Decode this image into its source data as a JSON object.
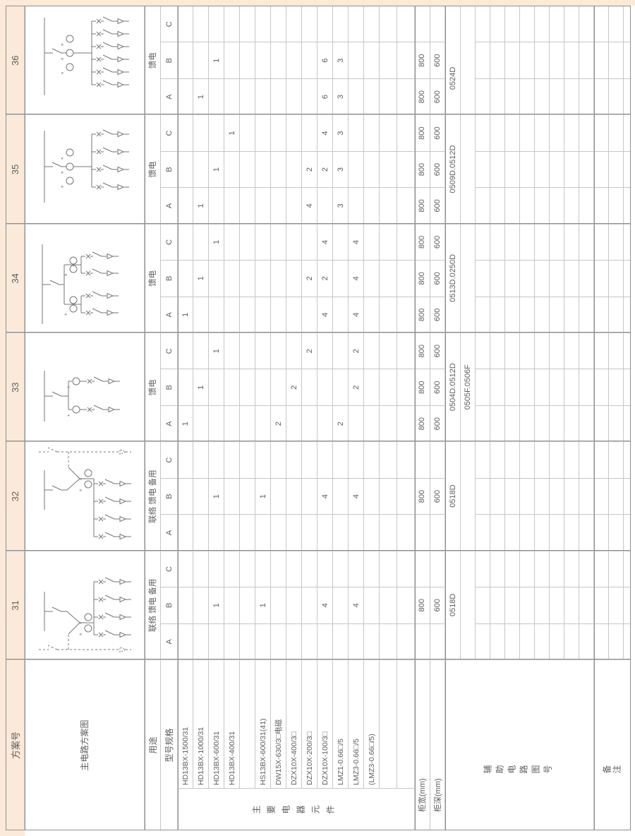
{
  "colors": {
    "paper": "#fbead9",
    "grid_light": "#c6c6c6",
    "grid_dark": "#8f8f8f",
    "text": "#5d5d5d",
    "diagram_stroke": "#757575",
    "background": "#ffffff"
  },
  "header": {
    "scheme_no_label": "方案号"
  },
  "row_labels": {
    "diagram": "主电路方案图",
    "purpose": "用途",
    "spec": "型号规格",
    "components": "主要电器元件",
    "width": "柜宽(mm)",
    "depth": "柜深(mm)",
    "aux": "辅助电路图号",
    "remark": "备注"
  },
  "subcols": [
    "A",
    "B",
    "C"
  ],
  "components": [
    "HD13BX-1500/31",
    "HD13BX-1000/31",
    "HD13BX-600/31",
    "HD13BX-400/31",
    "",
    "HS13BX-600/31(41)",
    "DW15X-630/3□电磁",
    "DZX10X-400/3□",
    "DZX10X-200/3□",
    "DZX10X-100/3□",
    "LMZ1-0.66□/5",
    "LMZ3-0.66□/5",
    "(LMZ3-0.66□/5)"
  ],
  "schemes": [
    {
      "no": "31",
      "purpose": "联络 馈电 备用",
      "A": [
        "",
        "",
        "",
        "",
        "",
        "",
        "",
        "",
        "",
        "",
        "",
        "",
        ""
      ],
      "B": [
        "",
        "",
        "1",
        "",
        "",
        "1",
        "",
        "",
        "",
        "4",
        "",
        "4",
        ""
      ],
      "C": [
        "",
        "",
        "",
        "",
        "",
        "",
        "",
        "",
        "",
        "",
        "",
        "",
        ""
      ],
      "width": [
        "",
        "800",
        ""
      ],
      "depth": [
        "",
        "600",
        ""
      ],
      "aux": [
        "0518D"
      ],
      "aux_span": "band",
      "diagram": {
        "kind": "tie",
        "feeders": 4,
        "cts": 2,
        "reserve": "left"
      }
    },
    {
      "no": "32",
      "purpose": "联络 馈电 备用",
      "A": [
        "",
        "",
        "",
        "",
        "",
        "",
        "",
        "",
        "",
        "",
        "",
        "",
        ""
      ],
      "B": [
        "",
        "",
        "1",
        "",
        "",
        "1",
        "",
        "",
        "",
        "4",
        "",
        "4",
        ""
      ],
      "C": [
        "",
        "",
        "",
        "",
        "",
        "",
        "",
        "",
        "",
        "",
        "",
        "",
        ""
      ],
      "width": [
        "",
        "800",
        ""
      ],
      "depth": [
        "",
        "600",
        ""
      ],
      "aux": [
        "0518D"
      ],
      "aux_span": "band",
      "diagram": {
        "kind": "tie",
        "feeders": 4,
        "cts": 2,
        "reserve": "right"
      }
    },
    {
      "no": "33",
      "purpose": "馈电",
      "A": [
        "1",
        "",
        "",
        "",
        "",
        "",
        "2",
        "",
        "",
        "",
        "2",
        "",
        ""
      ],
      "B": [
        "",
        "1",
        "",
        "",
        "",
        "",
        "",
        "2",
        "",
        "",
        "",
        "2",
        ""
      ],
      "C": [
        "",
        "",
        "1",
        "",
        "",
        "",
        "",
        "",
        "2",
        "",
        "",
        "2",
        ""
      ],
      "width": [
        "800",
        "800",
        "800"
      ],
      "depth": [
        "600",
        "600",
        "600"
      ],
      "aux": [
        "0504D.0512D",
        "0505F.0506F"
      ],
      "aux_span": "band",
      "diagram": {
        "kind": "feeder-ct",
        "feeders": 2
      }
    },
    {
      "no": "34",
      "purpose": "馈电",
      "A": [
        "1",
        "",
        "",
        "",
        "",
        "",
        "",
        "",
        "",
        "4",
        "",
        "4",
        ""
      ],
      "B": [
        "",
        "1",
        "",
        "",
        "",
        "",
        "",
        "",
        "2",
        "2",
        "",
        "4",
        ""
      ],
      "C": [
        "",
        "",
        "1",
        "",
        "",
        "",
        "",
        "",
        "",
        "4",
        "",
        "4",
        ""
      ],
      "width": [
        "800",
        "800",
        "800"
      ],
      "depth": [
        "600",
        "600",
        "600"
      ],
      "aux": [
        "0513D.0250D"
      ],
      "aux_span": "band",
      "diagram": {
        "kind": "branch",
        "branches": 2,
        "feeders_per_branch": 2
      }
    },
    {
      "no": "35",
      "purpose": "馈电",
      "A": [
        "",
        "1",
        "",
        "",
        "",
        "",
        "",
        "",
        "4",
        "",
        "3",
        "",
        ""
      ],
      "B": [
        "",
        "",
        "1",
        "",
        "",
        "",
        "",
        "",
        "2",
        "2",
        "3",
        "",
        ""
      ],
      "C": [
        "",
        "",
        "",
        "1",
        "",
        "",
        "",
        "",
        "",
        "4",
        "3",
        "",
        ""
      ],
      "width": [
        "800",
        "800",
        "800"
      ],
      "depth": [
        "600",
        "600",
        "600"
      ],
      "aux": [
        "0509D.0512D"
      ],
      "aux_span": "band",
      "diagram": {
        "kind": "main-ct",
        "feeders": 4,
        "cts": 3
      }
    },
    {
      "no": "36",
      "purpose": "馈电",
      "A": [
        "",
        "1",
        "",
        "",
        "",
        "",
        "",
        "",
        "",
        "6",
        "3",
        "",
        ""
      ],
      "B": [
        "",
        "",
        "1",
        "",
        "",
        "",
        "",
        "",
        "",
        "6",
        "3",
        "",
        ""
      ],
      "C": [
        "",
        "",
        "",
        "",
        "",
        "",
        "",
        "",
        "",
        "",
        "",
        "",
        ""
      ],
      "width": [
        "800",
        "800",
        ""
      ],
      "depth": [
        "600",
        "600",
        ""
      ],
      "aux": [
        "0524D"
      ],
      "aux_span": "AB",
      "diagram": {
        "kind": "main-ct",
        "feeders": 6,
        "cts": 3
      }
    }
  ]
}
